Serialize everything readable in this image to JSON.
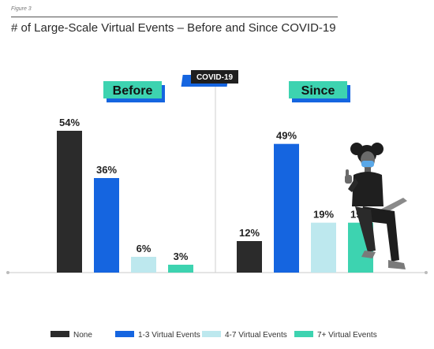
{
  "figure_label": "Figure 3",
  "colors": {
    "None": "#2b2b2b",
    "1-3 Virtual Events": "#1565e0",
    "4-7 Virtual Events": "#bde8ee",
    "7+ Virtual Events": "#3dd3b0",
    "panel_badge": "#3dd3b0",
    "panel_badge_shadow": "#1565e0",
    "divider_badge": "#1f1f1f"
  },
  "chart_data": {
    "type": "bar",
    "title": "# of Large-Scale Virtual Events – Before and Since COVID-19",
    "divider_label": "COVID-19",
    "categories": [
      "None",
      "1-3 Virtual Events",
      "4-7 Virtual Events",
      "7+ Virtual Events"
    ],
    "series": [
      {
        "name": "Before",
        "values": [
          54,
          36,
          6,
          3
        ],
        "labels": [
          "54%",
          "36%",
          "6%",
          "3%"
        ]
      },
      {
        "name": "Since",
        "values": [
          12,
          49,
          19,
          19
        ],
        "labels": [
          "12%",
          "49%",
          "19%",
          "19%"
        ]
      }
    ],
    "ylim": [
      0,
      60
    ],
    "grid": false,
    "legend": {
      "position": "bottom",
      "entries": [
        "None",
        "1-3 Virtual Events",
        "4-7 Virtual Events",
        "7+ Virtual Events"
      ]
    },
    "xlabel": "",
    "ylabel": ""
  },
  "illustration": "woman-thumbs-up-laptop"
}
